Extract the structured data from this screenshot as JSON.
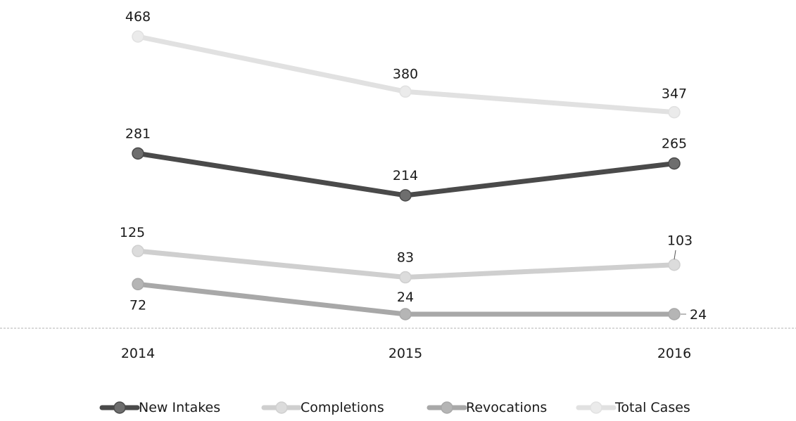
{
  "chart_data": {
    "type": "line",
    "title": "",
    "xlabel": "",
    "ylabel": "",
    "x": [
      "2014",
      "2015",
      "2016"
    ],
    "ylim": [
      0,
      520
    ],
    "grid": false,
    "legend_placement": "bottom",
    "series": [
      {
        "name": "New Intakes",
        "values": [
          281,
          214,
          265
        ],
        "labels": [
          "281",
          "214",
          "265"
        ],
        "color": "#4a4a4a",
        "marker_color": "#6e6e6e"
      },
      {
        "name": "Completions",
        "values": [
          125,
          83,
          103
        ],
        "labels": [
          "125",
          "83",
          "103"
        ],
        "color": "#cfcfcf",
        "marker_color": "#dcdcdc"
      },
      {
        "name": "Revocations",
        "values": [
          72,
          24,
          24
        ],
        "labels": [
          "72",
          "24",
          "24"
        ],
        "color": "#a8a8a8",
        "marker_color": "#b5b5b5"
      },
      {
        "name": "Total Cases",
        "values": [
          468,
          380,
          347
        ],
        "labels": [
          "468",
          "380",
          "347"
        ],
        "color": "#e1e1e1",
        "marker_color": "#ebebeb"
      }
    ]
  }
}
